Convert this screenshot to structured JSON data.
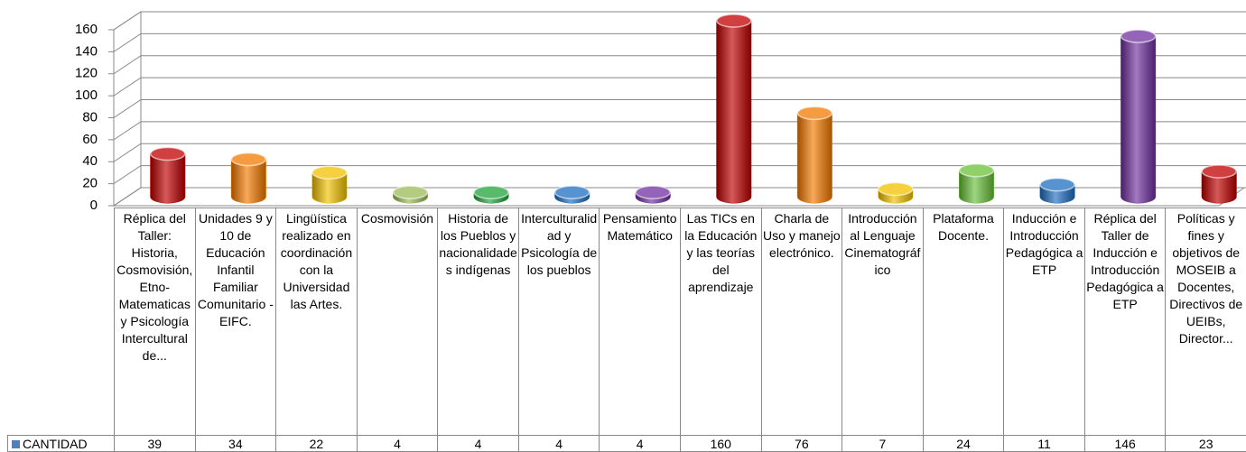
{
  "chart_data": {
    "type": "bar3d",
    "categories": [
      "Réplica del Taller: Historia, Cosmovisión, Etno-Matematicas y Psicología Intercultural de...",
      "Unidades 9 y 10 de Educación Infantil Familiar Comunitario - EIFC.",
      "Lingüística realizado en coordinación con la Universidad las Artes.",
      "Cosmovisión",
      "Historia de los Pueblos y nacionalidades indígenas",
      "Interculturalidad y Psicología de los pueblos",
      "Pensamiento Matemático",
      "Las TICs en la Educación y las teorías del aprendizaje",
      "Charla de Uso y manejo electrónico.",
      "Introducción al Lenguaje Cinematográfico",
      "Plataforma Docente.",
      "Inducción e Introducción Pedagógica a ETP",
      "Réplica del Taller de Inducción e Introducción Pedagógica a ETP",
      "Políticas y fines y objetivos de MOSEIB a Docentes, Directivos de UEIBs, Director..."
    ],
    "series": [
      {
        "name": "CANTIDAD",
        "color": "#4f81bd",
        "values": [
          39,
          34,
          22,
          4,
          4,
          4,
          4,
          160,
          76,
          7,
          24,
          11,
          146,
          23
        ],
        "colors": [
          "#c00000",
          "#f47a00",
          "#f2c200",
          "#9bbb59",
          "#22a33a",
          "#1f6fc0",
          "#7030a0",
          "#c00000",
          "#f47a00",
          "#f2c200",
          "#6ac13a",
          "#1f6fc0",
          "#7030a0",
          "#c00000"
        ]
      }
    ],
    "ylim": [
      0,
      160
    ],
    "yticks": [
      0,
      20,
      40,
      60,
      80,
      100,
      120,
      140,
      160
    ],
    "grid": true,
    "data_table": true
  }
}
